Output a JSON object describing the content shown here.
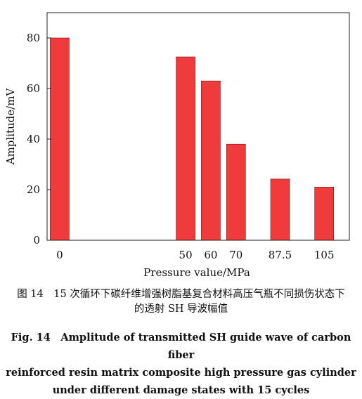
{
  "chart_data": {
    "type": "bar",
    "categories": [
      "0",
      "50",
      "60",
      "70",
      "87.5",
      "105"
    ],
    "x": [
      0,
      50,
      60,
      70,
      87.5,
      105
    ],
    "values": [
      80,
      72.5,
      63,
      38,
      24.2,
      21
    ],
    "xlabel": "Pressure value/MPa",
    "ylabel": "Amplitude/mV",
    "ylim": [
      0,
      90
    ],
    "yticks": [
      0,
      20,
      40,
      60,
      80
    ],
    "xlim": [
      -5,
      115
    ],
    "grid": false,
    "bar_color": "#ef3b3b"
  },
  "caption": {
    "cn_line1": "图 14　15 次循环下碳纤维增强树脂基复合材料高压气瓶不同损伤状态下",
    "cn_line2": "的透射 SH 导波幅值",
    "en_line1": "Fig. 14　Amplitude of transmitted SH guide wave of carbon fiber",
    "en_line2": "reinforced resin matrix composite high pressure gas cylinder",
    "en_line3": "under different damage states with 15 cycles"
  }
}
